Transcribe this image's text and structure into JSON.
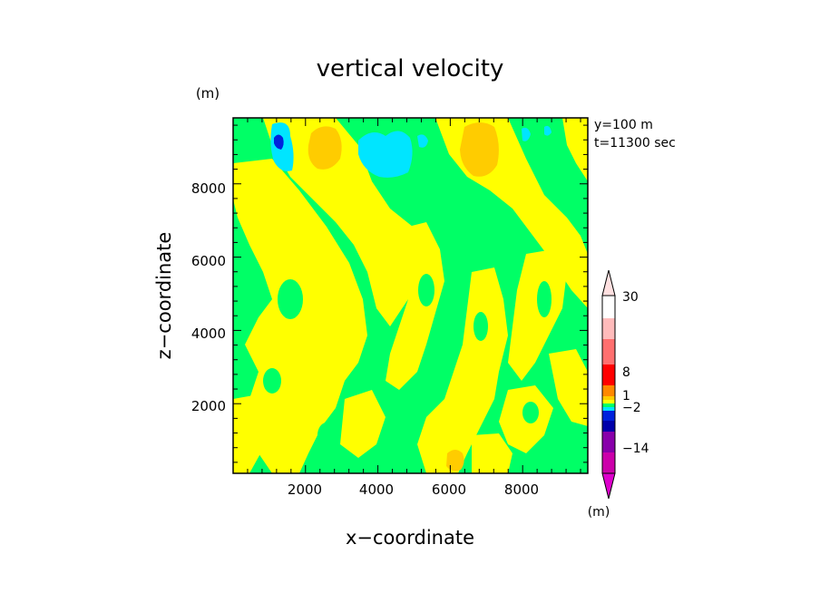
{
  "chart_data": {
    "type": "heatmap",
    "title": "vertical velocity",
    "xlabel": "x−coordinate",
    "ylabel": "z−coordinate",
    "x_unit": "(m)",
    "y_unit": "(m)",
    "annotations": [
      "y=100  m",
      "t=11300 sec"
    ],
    "xlim": [
      0,
      9800
    ],
    "ylim": [
      100,
      9800
    ],
    "x_ticks": [
      2000,
      4000,
      6000,
      8000
    ],
    "x_tick_labels": [
      "2000",
      "4000",
      "6000",
      "8000"
    ],
    "y_ticks": [
      2000,
      4000,
      6000,
      8000
    ],
    "y_tick_labels": [
      "2000",
      "4000",
      "6000",
      "8000"
    ],
    "colorbar": {
      "unit": "(m)",
      "levels_shown": [
        "30",
        "8",
        "1",
        "−2",
        "−14"
      ],
      "bands": [
        {
          "color": "#cc00aa"
        },
        {
          "color": "#8800aa"
        },
        {
          "color": "#0000aa"
        },
        {
          "color": "#0022dd"
        },
        {
          "color": "#00e5ff"
        },
        {
          "color": "#00ff66"
        },
        {
          "color": "#ffff00"
        },
        {
          "color": "#ffcc00"
        },
        {
          "color": "#ff8800"
        },
        {
          "color": "#ff0000"
        },
        {
          "color": "#ff6f6f"
        },
        {
          "color": "#ffbbbb"
        }
      ],
      "over_color": "#ffe0e0",
      "under_color": "#dd00cc"
    },
    "field_colors": {
      "background": "#00ff66",
      "positive_weak": "#ffff00",
      "positive_moderate": "#ffcc00",
      "negative_weak": "#00e5ff",
      "negative_moderate": "#0022dd"
    }
  }
}
